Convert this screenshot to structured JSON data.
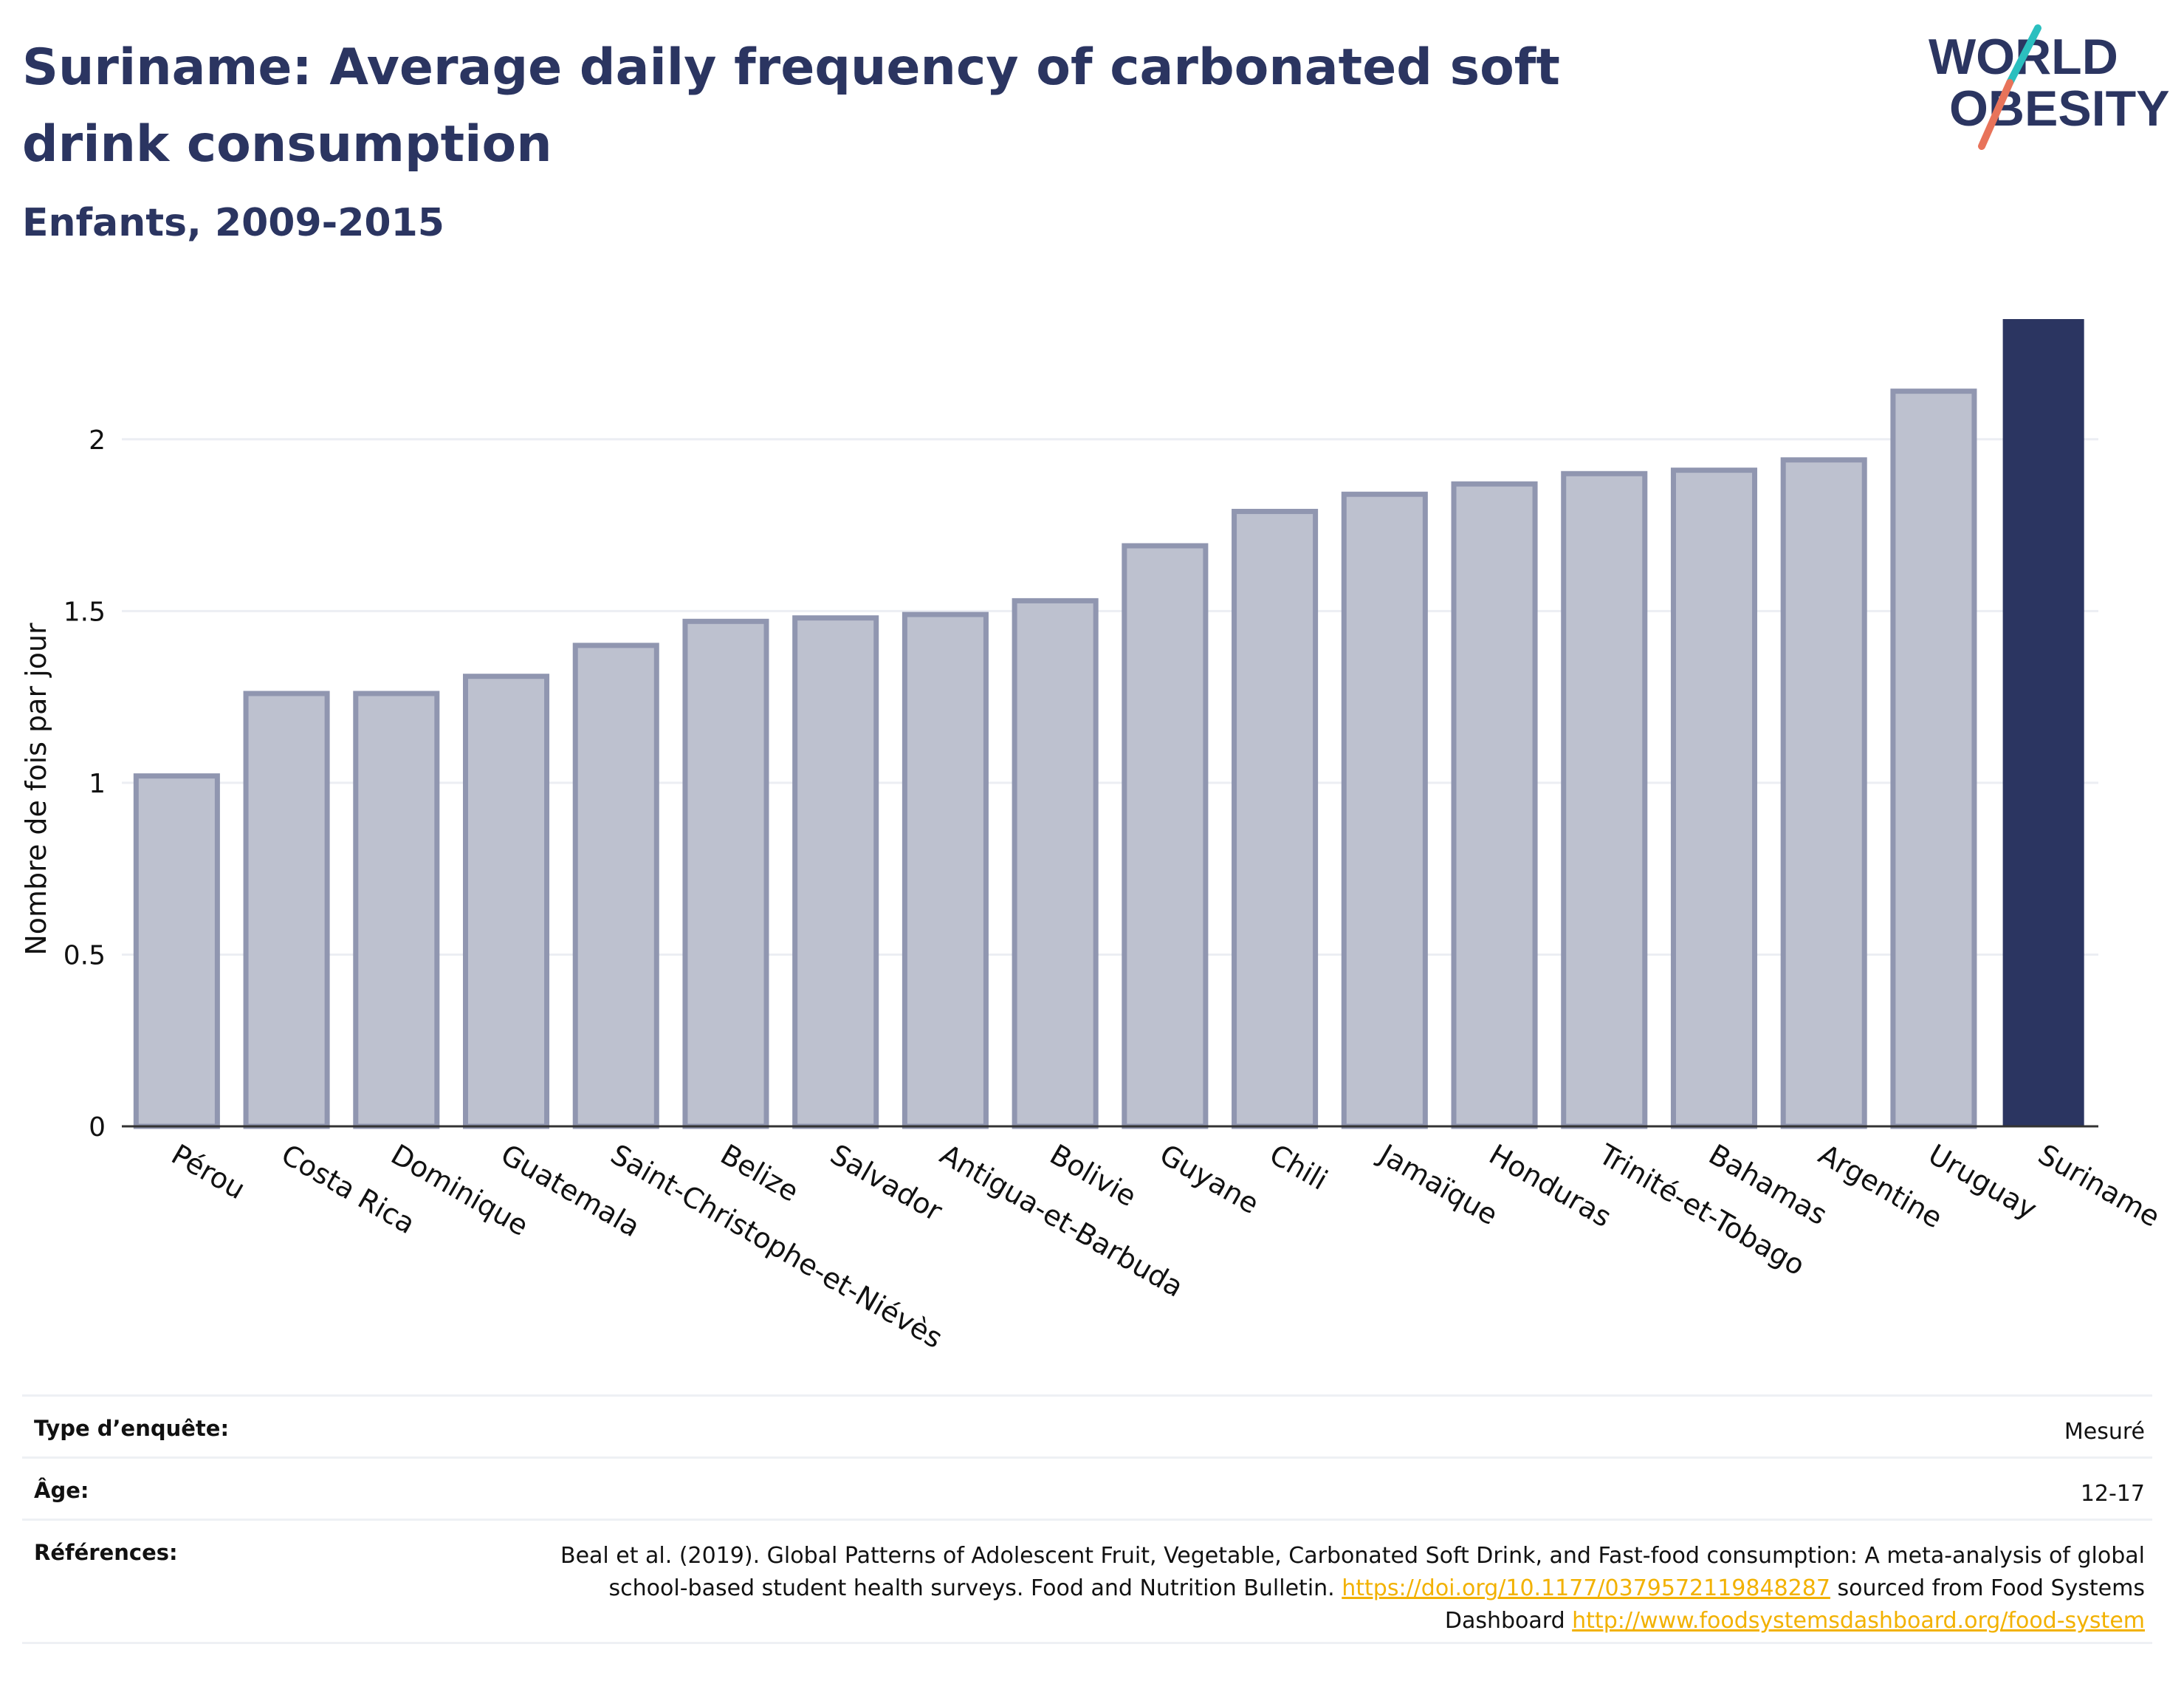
{
  "header": {
    "title": "Suriname: Average daily frequency of carbonated soft drink consumption",
    "subtitle": "Enfants, 2009-2015"
  },
  "logo": {
    "line1": "WORLD",
    "line2": "OBESITY",
    "colors": {
      "text": "#2b3561",
      "slash_teal": "#2bbfbf",
      "slash_coral": "#e8735a"
    }
  },
  "colors": {
    "bar_default": "#bdc1cf",
    "bar_border": "#9096b0",
    "bar_highlight": "#2b3561",
    "grid": "#eceef3",
    "axis_text": "#111111"
  },
  "chart_data": {
    "type": "bar",
    "title": "Suriname: Average daily frequency of carbonated soft drink consumption",
    "subtitle": "Enfants, 2009-2015",
    "xlabel": "",
    "ylabel": "Nombre de fois par jour",
    "ylim": [
      0,
      2.35
    ],
    "yticks": [
      0,
      0.5,
      1,
      1.5,
      2
    ],
    "ytick_labels": [
      "0",
      "0.5",
      "1",
      "1.5",
      "2"
    ],
    "grid": true,
    "highlight": "Suriname",
    "categories": [
      "Pérou",
      "Costa Rica",
      "Dominique",
      "Guatemala",
      "Saint-Christophe-et-Niévès",
      "Belize",
      "Salvador",
      "Antigua-et-Barbuda",
      "Bolivie",
      "Guyane",
      "Chili",
      "Jamaïque",
      "Honduras",
      "Trinité-et-Tobago",
      "Bahamas",
      "Argentine",
      "Uruguay",
      "Suriname"
    ],
    "values": [
      1.02,
      1.26,
      1.26,
      1.31,
      1.4,
      1.47,
      1.48,
      1.49,
      1.53,
      1.69,
      1.79,
      1.84,
      1.87,
      1.9,
      1.91,
      1.94,
      2.14,
      2.35
    ]
  },
  "info": {
    "survey_label": "Type d’enquête:",
    "survey_value": "Mesuré",
    "age_label": "Âge:",
    "age_value": "12-17",
    "ref_label": "Références:",
    "ref_text_1": "Beal et al. (2019). Global Patterns of Adolescent Fruit, Vegetable, Carbonated Soft Drink, and Fast-food consumption: A meta-analysis of global school-based student health surveys. Food and Nutrition Bulletin. ",
    "ref_link_1": "https://doi.org/10.1177/0379572119848287",
    "ref_text_2": " sourced from Food Systems Dashboard ",
    "ref_link_2": "http://www.foodsystemsdashboard.org/food-system"
  }
}
